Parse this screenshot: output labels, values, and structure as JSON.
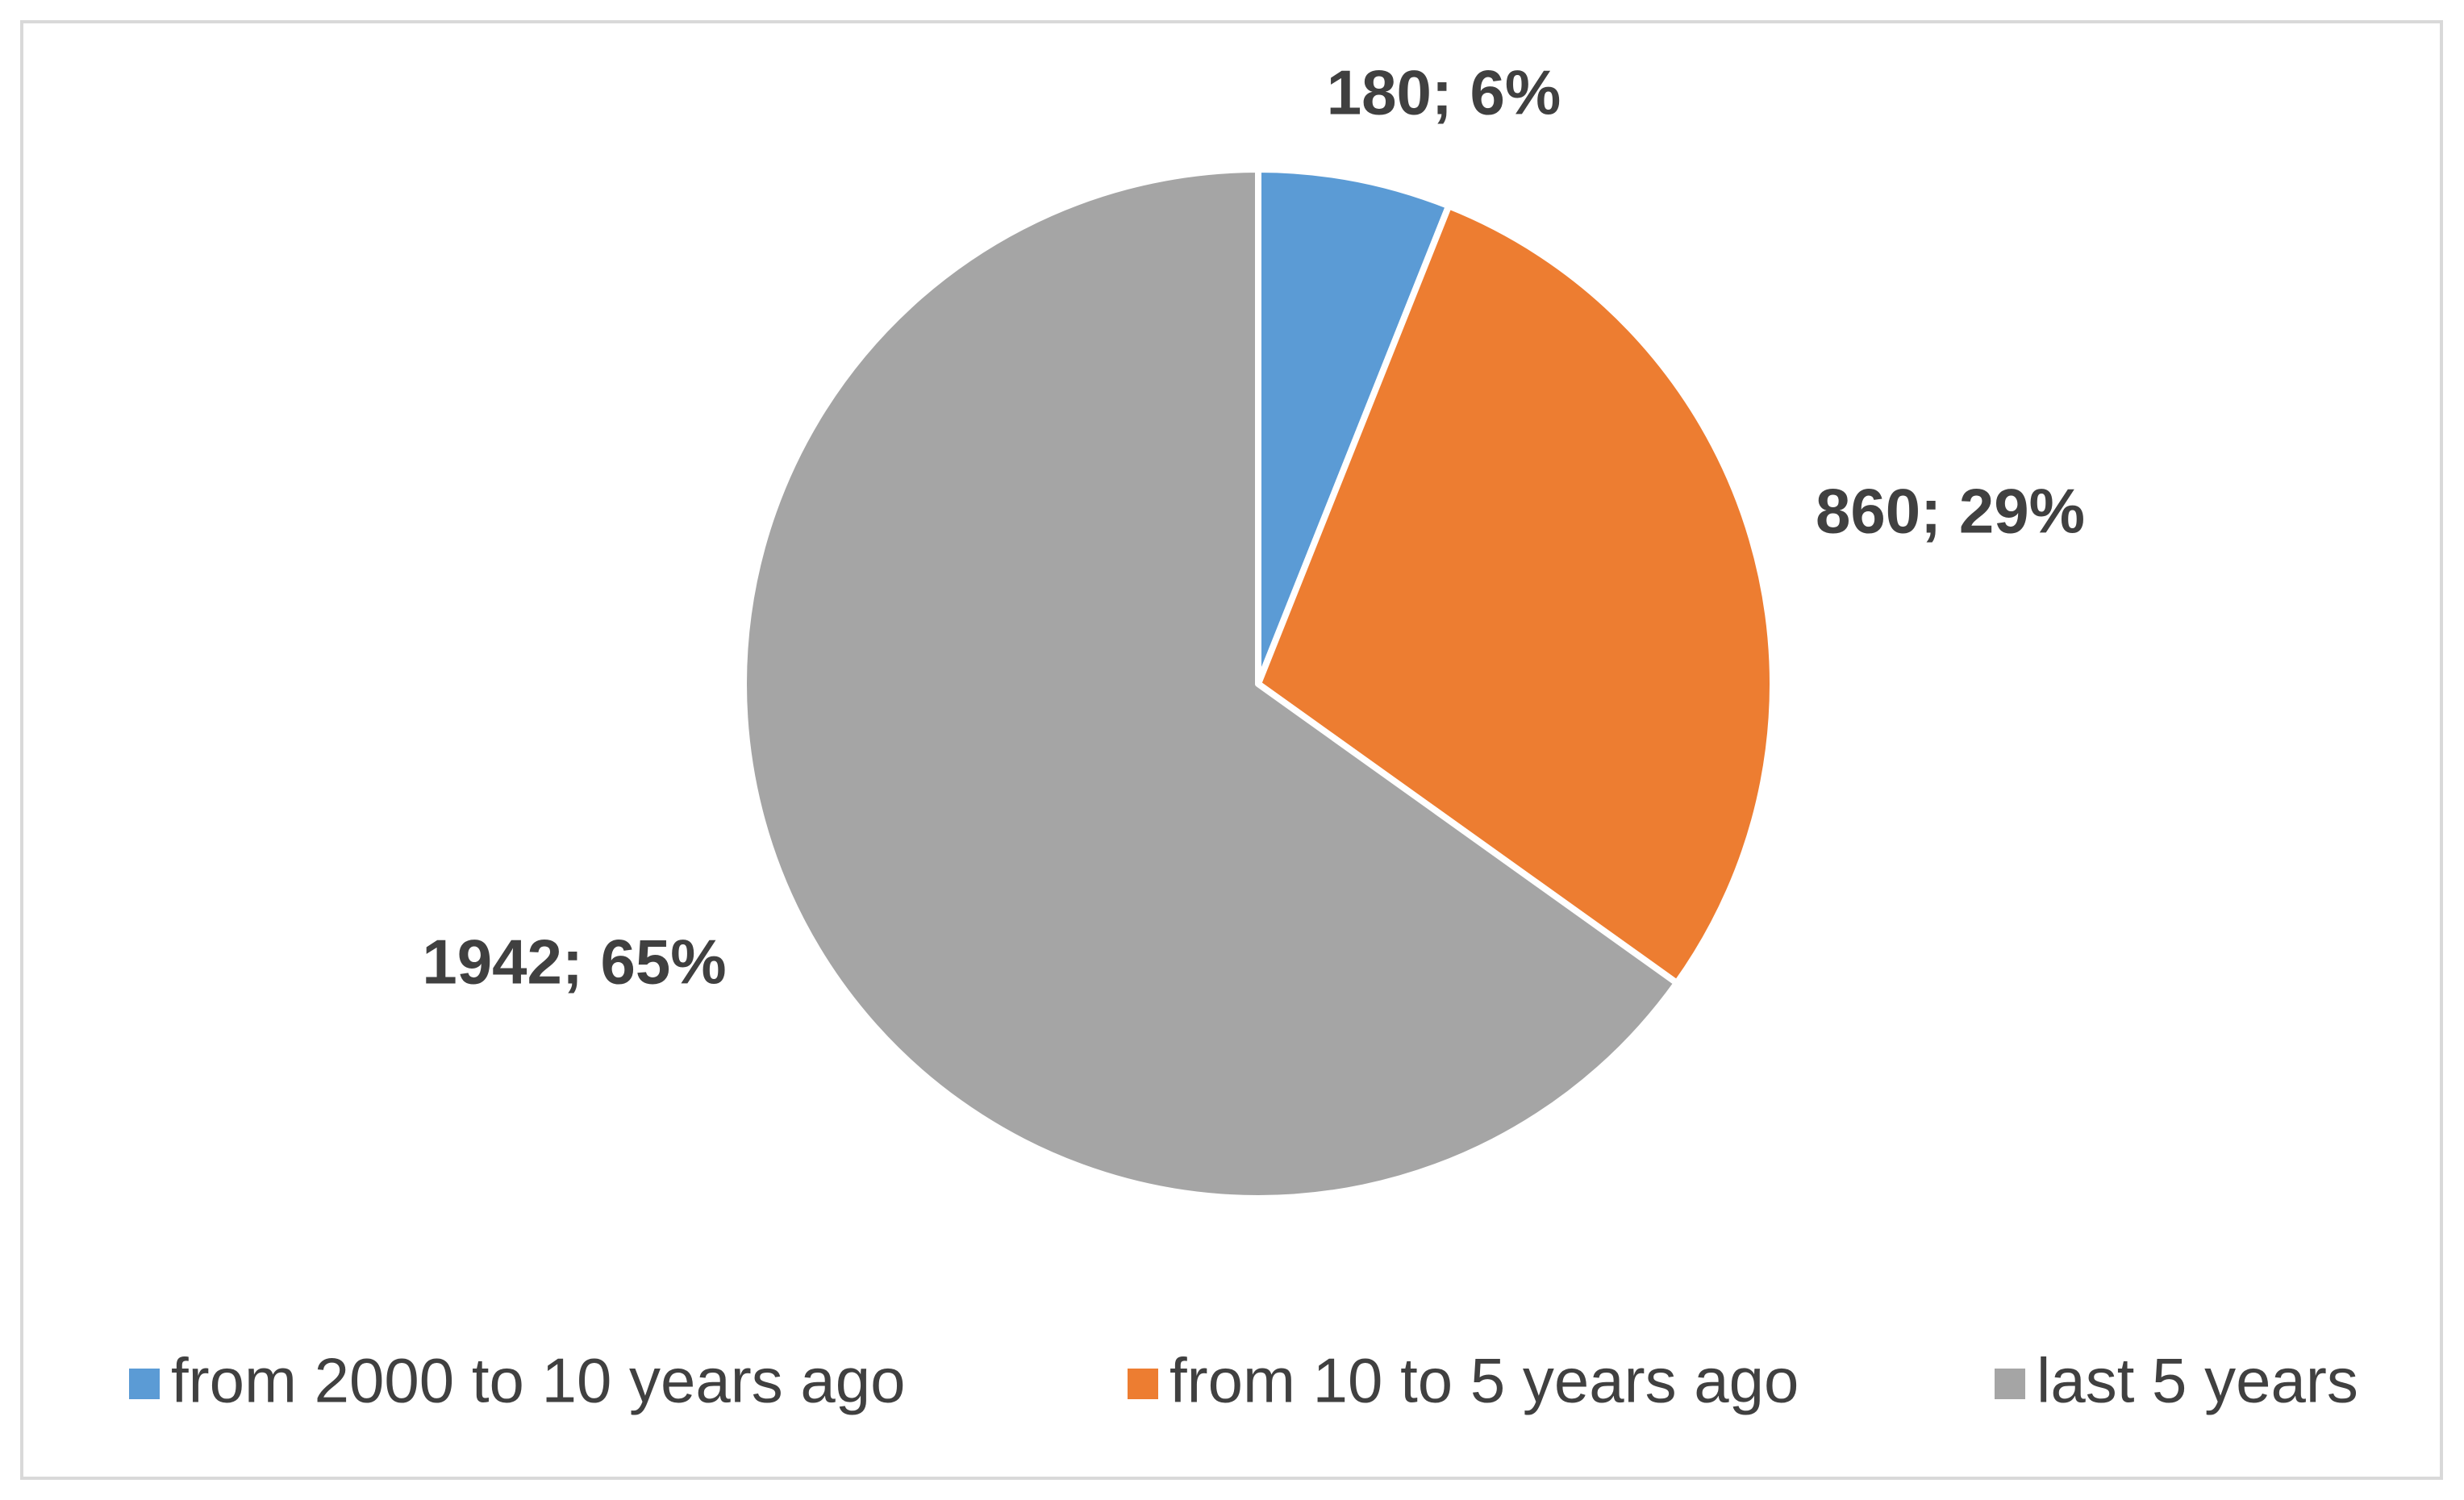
{
  "chart_data": {
    "type": "pie",
    "categories": [
      "from 2000 to 10 years ago",
      "from 10 to 5 years ago",
      "last 5 years"
    ],
    "values": [
      180,
      860,
      1942
    ],
    "value_labels": [
      "180; 6%",
      "860; 29%",
      "1942; 65%"
    ],
    "colors": [
      "#5b9bd5",
      "#ed7d31",
      "#a5a5a5"
    ],
    "legend": "bottom"
  }
}
